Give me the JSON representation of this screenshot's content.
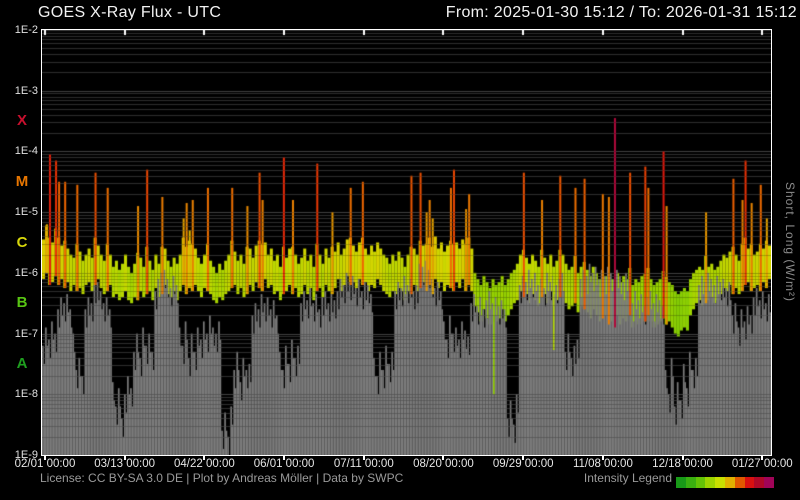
{
  "header": {
    "title": "GOES X-Ray Flux - UTC",
    "range": "From: 2025-01-30 15:12 / To: 2026-01-31 15:12"
  },
  "y_axis": {
    "labels": [
      "1E-2",
      "1E-3",
      "1E-4",
      "1E-5",
      "1E-6",
      "1E-7",
      "1E-8",
      "1E-9"
    ]
  },
  "class_bands": [
    {
      "label": "X",
      "color": "#c8102e",
      "log": -3.5
    },
    {
      "label": "M",
      "color": "#e87600",
      "log": -4.5
    },
    {
      "label": "C",
      "color": "#d6d60a",
      "log": -5.5
    },
    {
      "label": "B",
      "color": "#58c413",
      "log": -6.5
    },
    {
      "label": "A",
      "color": "#1f9e1f",
      "log": -7.5
    }
  ],
  "x_axis": {
    "labels": [
      "02/01 00:00",
      "03/13 00:00",
      "04/22 00:00",
      "06/01 00:00",
      "07/11 00:00",
      "08/20 00:00",
      "09/29 00:00",
      "11/08 00:00",
      "12/18 00:00",
      "01/27 00:00"
    ],
    "fracs": [
      0.0041,
      0.1134,
      0.2228,
      0.3321,
      0.4414,
      0.5507,
      0.6601,
      0.7694,
      0.8787,
      0.988
    ]
  },
  "right_axis_label": "Short, Long (W/m²)",
  "footer": {
    "license": "License: CC BY-SA 3.0 DE | Plot by Andreas Möller | Data by SWPC",
    "legend_label": "Intensity Legend",
    "legend_colors": [
      "#189a18",
      "#3ab010",
      "#63c306",
      "#9cd400",
      "#c8df00",
      "#e0b000",
      "#e05800",
      "#d81010",
      "#b00828",
      "#a00458"
    ]
  },
  "chart_data": {
    "type": "bar",
    "title": "GOES X-Ray Flux - UTC",
    "x_start": "2025-01-30 15:12",
    "x_end": "2026-01-31 15:12",
    "xlabel": "UTC date (40-day ticks)",
    "ylabel": "Short, Long (W/m²)",
    "y_scale": "log10",
    "ylim_log": [
      -9,
      -2
    ],
    "grid": "log major+minor, horizontal",
    "legend_position": "bottom-right",
    "bins": 240,
    "series": [
      {
        "name": "long (0.1-0.8 nm), colored by intensity class",
        "log10_max": [
          -5.45,
          -5.2,
          -4.05,
          -5.5,
          -4.15,
          -4.5,
          -5.55,
          -4.5,
          -5.6,
          -5.7,
          -5.75,
          -4.55,
          -5.65,
          -5.8,
          -5.7,
          -5.6,
          -5.75,
          -4.35,
          -5.55,
          -5.7,
          -5.8,
          -4.6,
          -5.7,
          -5.9,
          -5.8,
          -5.95,
          -5.85,
          -5.7,
          -5.9,
          -6.0,
          -5.85,
          -4.9,
          -5.75,
          -5.9,
          -4.3,
          -5.8,
          -5.95,
          -5.7,
          -5.85,
          -4.75,
          -5.6,
          -5.8,
          -5.9,
          -5.75,
          -5.85,
          -5.7,
          -5.1,
          -4.85,
          -5.3,
          -4.8,
          -5.6,
          -5.75,
          -5.85,
          -5.7,
          -4.6,
          -5.8,
          -5.9,
          -6.0,
          -5.85,
          -5.95,
          -5.8,
          -5.7,
          -4.6,
          -5.65,
          -5.8,
          -5.7,
          -5.85,
          -4.9,
          -5.6,
          -5.75,
          -5.55,
          -4.35,
          -4.8,
          -5.5,
          -5.7,
          -5.6,
          -5.8,
          -5.7,
          -5.9,
          -4.1,
          -5.75,
          -5.6,
          -4.8,
          -5.7,
          -5.85,
          -5.75,
          -5.6,
          -5.8,
          -5.7,
          -5.9,
          -4.2,
          -5.7,
          -5.85,
          -5.6,
          -5.75,
          -5.0,
          -5.65,
          -5.5,
          -5.7,
          -5.6,
          -5.45,
          -4.6,
          -5.55,
          -5.65,
          -5.5,
          -4.5,
          -5.6,
          -5.7,
          -5.55,
          -5.65,
          -5.5,
          -5.6,
          -5.7,
          -5.75,
          -5.85,
          -5.7,
          -5.8,
          -5.65,
          -5.75,
          -5.9,
          -5.7,
          -4.4,
          -5.6,
          -5.7,
          -4.35,
          -5.55,
          -5.0,
          -4.8,
          -5.1,
          -5.4,
          -5.6,
          -5.5,
          -5.65,
          -5.55,
          -4.6,
          -4.3,
          -5.5,
          -5.6,
          -5.45,
          -4.95,
          -4.7,
          -5.6,
          -6.0,
          -6.1,
          -6.2,
          -6.05,
          -6.15,
          -6.25,
          -6.1,
          -6.2,
          -6.15,
          -6.05,
          -6.2,
          -6.1,
          -6.0,
          -5.95,
          -5.85,
          -5.7,
          -4.35,
          -5.75,
          -5.85,
          -5.7,
          -5.8,
          -5.9,
          -4.8,
          -5.75,
          -5.85,
          -5.7,
          -5.9,
          -5.8,
          -4.4,
          -5.7,
          -5.85,
          -5.95,
          -5.9,
          -4.6,
          -6.0,
          -5.9,
          -4.45,
          -5.95,
          -6.05,
          -5.9,
          -6.0,
          -6.1,
          -4.7,
          -6.05,
          -4.75,
          -6.1,
          -3.45,
          -6.0,
          -6.15,
          -6.05,
          -6.1,
          -4.35,
          -6.2,
          -6.1,
          -6.15,
          -6.05,
          -4.25,
          -4.6,
          -6.1,
          -6.2,
          -6.15,
          -6.1,
          -4.0,
          -4.9,
          -6.15,
          -6.2,
          -6.3,
          -6.35,
          -6.3,
          -6.25,
          -6.3,
          -6.1,
          -6.0,
          -5.95,
          -5.9,
          -5.95,
          -5.0,
          -5.9,
          -5.85,
          -5.95,
          -5.9,
          -5.8,
          -5.7,
          -5.75,
          -5.65,
          -4.45,
          -5.7,
          -5.8,
          -4.8,
          -4.15,
          -5.6,
          -4.85,
          -5.7,
          -5.65,
          -4.55,
          -5.6,
          -5.1,
          -5.55
        ],
        "log10_min": [
          -6.1,
          -6.0,
          -6.2,
          -6.15,
          -6.05,
          -6.2,
          -6.1,
          -6.25,
          -6.15,
          -6.3,
          -6.2,
          -6.3,
          -6.25,
          -6.35,
          -6.2,
          -6.15,
          -6.3,
          -6.2,
          -6.1,
          -6.25,
          -6.35,
          -6.3,
          -6.2,
          -6.4,
          -6.35,
          -6.45,
          -6.4,
          -6.3,
          -6.45,
          -6.5,
          -6.4,
          -6.45,
          -6.3,
          -6.4,
          -6.35,
          -6.3,
          -6.45,
          -6.25,
          -6.4,
          -6.35,
          -6.2,
          -6.35,
          -6.4,
          -6.3,
          -6.45,
          -6.3,
          -6.2,
          -6.35,
          -6.25,
          -6.3,
          -6.2,
          -6.3,
          -6.4,
          -6.25,
          -6.3,
          -6.35,
          -6.45,
          -6.5,
          -6.4,
          -6.45,
          -6.35,
          -6.3,
          -6.25,
          -6.2,
          -6.35,
          -6.25,
          -6.4,
          -6.35,
          -6.2,
          -6.3,
          -6.15,
          -6.25,
          -6.3,
          -6.1,
          -6.25,
          -6.2,
          -6.35,
          -6.3,
          -6.45,
          -6.35,
          -6.3,
          -6.2,
          -6.35,
          -6.25,
          -6.4,
          -6.35,
          -6.2,
          -6.35,
          -6.25,
          -6.45,
          -6.3,
          -6.25,
          -6.4,
          -6.2,
          -6.3,
          -6.35,
          -6.25,
          -6.1,
          -6.3,
          -6.2,
          -6.05,
          -6.2,
          -6.15,
          -6.25,
          -6.1,
          -6.2,
          -6.15,
          -6.3,
          -6.2,
          -6.25,
          -6.1,
          -6.2,
          -6.3,
          -6.35,
          -6.4,
          -6.3,
          -6.35,
          -6.25,
          -6.3,
          -6.45,
          -6.3,
          -6.35,
          -6.2,
          -6.3,
          -6.25,
          -6.15,
          -6.3,
          -6.2,
          -6.35,
          -6.1,
          -6.25,
          -6.15,
          -6.3,
          -6.2,
          -6.25,
          -6.3,
          -6.15,
          -6.25,
          -6.1,
          -6.3,
          -6.2,
          -6.3,
          -6.55,
          -6.65,
          -6.8,
          -6.6,
          -6.75,
          -6.85,
          -6.7,
          -6.8,
          -6.75,
          -6.6,
          -6.8,
          -6.7,
          -6.6,
          -6.5,
          -6.45,
          -6.3,
          -6.4,
          -6.35,
          -6.5,
          -6.35,
          -6.45,
          -6.55,
          -6.4,
          -6.35,
          -6.5,
          -6.3,
          -6.55,
          -6.45,
          -6.4,
          -6.3,
          -6.5,
          -6.6,
          -6.55,
          -6.5,
          -6.65,
          -6.55,
          -6.6,
          -6.65,
          -6.75,
          -6.6,
          -6.7,
          -6.8,
          -6.75,
          -6.7,
          -6.85,
          -6.8,
          -6.9,
          -6.7,
          -6.85,
          -6.75,
          -6.8,
          -6.7,
          -6.9,
          -6.8,
          -6.85,
          -6.75,
          -6.8,
          -6.7,
          -6.8,
          -6.9,
          -6.85,
          -6.8,
          -6.75,
          -6.85,
          -6.8,
          -6.9,
          -7.0,
          -7.05,
          -6.95,
          -6.9,
          -6.95,
          -6.7,
          -6.6,
          -6.5,
          -6.45,
          -6.55,
          -6.5,
          -6.45,
          -6.4,
          -6.5,
          -6.45,
          -6.35,
          -6.25,
          -6.3,
          -6.2,
          -6.35,
          -6.25,
          -6.35,
          -6.3,
          -6.2,
          -6.15,
          -6.3,
          -6.25,
          -6.2,
          -6.3,
          -6.15,
          -6.25,
          -6.1
        ]
      },
      {
        "name": "short (0.05-0.4 nm)",
        "color": "#7c7c7c",
        "log10_max": [
          -7.2,
          -6.9,
          -7.1,
          -6.8,
          -7.0,
          -6.6,
          -6.4,
          -6.5,
          -6.35,
          -6.6,
          -7.0,
          -7.6,
          -7.4,
          -7.7,
          -6.6,
          -6.4,
          -6.5,
          -6.2,
          -6.15,
          -6.3,
          -6.5,
          -6.4,
          -6.6,
          -7.8,
          -8.2,
          -7.9,
          -8.4,
          -8.0,
          -7.7,
          -7.9,
          -7.3,
          -7.0,
          -7.4,
          -6.9,
          -7.2,
          -7.0,
          -7.3,
          -6.3,
          -6.1,
          -6.0,
          -5.95,
          -6.1,
          -6.25,
          -6.05,
          -6.2,
          -6.9,
          -7.2,
          -6.8,
          -7.4,
          -7.0,
          -7.3,
          -6.9,
          -7.1,
          -6.8,
          -7.0,
          -6.7,
          -6.9,
          -7.0,
          -6.8,
          -8.6,
          -8.3,
          -8.7,
          -8.2,
          -7.6,
          -7.3,
          -7.8,
          -7.4,
          -7.6,
          -7.5,
          -6.7,
          -6.5,
          -6.6,
          -6.35,
          -6.5,
          -6.4,
          -6.6,
          -6.45,
          -6.7,
          -7.3,
          -7.6,
          -7.2,
          -7.5,
          -7.1,
          -7.4,
          -7.2,
          -6.5,
          -6.3,
          -6.45,
          -6.25,
          -6.5,
          -6.35,
          -6.6,
          -6.4,
          -6.3,
          -6.5,
          -6.35,
          -6.45,
          -6.3,
          -6.1,
          -6.2,
          -6.0,
          -6.15,
          -6.05,
          -6.25,
          -6.1,
          -6.3,
          -6.15,
          -6.2,
          -6.35,
          -7.4,
          -7.7,
          -7.3,
          -7.6,
          -7.2,
          -7.5,
          -7.3,
          -6.3,
          -6.15,
          -6.25,
          -6.05,
          -6.2,
          -6.1,
          -6.3,
          -6.2,
          -5.85,
          -5.9,
          -5.8,
          -5.95,
          -6.1,
          -6.25,
          -6.15,
          -6.3,
          -6.8,
          -7.1,
          -6.7,
          -7.0,
          -6.9,
          -7.1,
          -6.8,
          -6.95,
          -7.05,
          -6.5,
          -6.35,
          -6.55,
          -6.4,
          -6.6,
          -6.45,
          -6.3,
          -6.5,
          -6.4,
          -6.55,
          -6.45,
          -6.6,
          -8.4,
          -8.1,
          -8.5,
          -8.0,
          -6.2,
          -6.05,
          -6.15,
          -5.95,
          -6.1,
          -6.0,
          -6.2,
          -6.1,
          -6.25,
          -6.0,
          -6.15,
          -6.05,
          -6.2,
          -6.1,
          -6.0,
          -7.3,
          -7.0,
          -7.4,
          -7.2,
          -7.1,
          -6.1,
          -5.95,
          -6.05,
          -5.85,
          -6.0,
          -5.9,
          -6.1,
          -5.95,
          -6.05,
          -5.9,
          -6.0,
          -6.1,
          -5.95,
          -6.05,
          -6.15,
          -6.0,
          -6.1,
          -6.5,
          -6.3,
          -6.45,
          -6.35,
          -6.55,
          -6.4,
          -6.3,
          -6.5,
          -6.35,
          -6.45,
          -6.55,
          -7.6,
          -8.0,
          -7.4,
          -8.2,
          -7.8,
          -8.1,
          -7.5,
          -7.9,
          -7.3,
          -7.6,
          -7.4,
          -6.2,
          -6.05,
          -6.15,
          -6.0,
          -6.1,
          -6.2,
          -6.05,
          -6.15,
          -6.1,
          -6.25,
          -6.15,
          -6.7,
          -6.5,
          -6.9,
          -6.6,
          -6.8,
          -6.55,
          -6.7,
          -6.4,
          -6.25,
          -6.45,
          -6.3,
          -6.5,
          -6.35
        ]
      }
    ],
    "dropout_lines": [
      {
        "bin": 148.5,
        "log10_top": -6.2,
        "log10_bottom": -8.0
      },
      {
        "bin": 168.2,
        "log10_top": -5.9,
        "log10_bottom": -7.27
      }
    ],
    "intensity_color_ramp": [
      [
        -8.0,
        "#1e9e1e"
      ],
      [
        -7.0,
        "#46b312"
      ],
      [
        -6.5,
        "#74c607"
      ],
      [
        -6.1,
        "#9cd400"
      ],
      [
        -5.8,
        "#bcd800"
      ],
      [
        -5.5,
        "#d8d400"
      ],
      [
        -5.2,
        "#e2ae00"
      ],
      [
        -4.9,
        "#e88a00"
      ],
      [
        -4.5,
        "#ee6600"
      ],
      [
        -4.15,
        "#e93206"
      ],
      [
        -3.95,
        "#dc1111"
      ],
      [
        -3.6,
        "#b50d2e"
      ],
      [
        -3.1,
        "#9c0458"
      ]
    ],
    "grid_colors": {
      "major": "#565656",
      "minor": "#3c3c3c"
    }
  }
}
